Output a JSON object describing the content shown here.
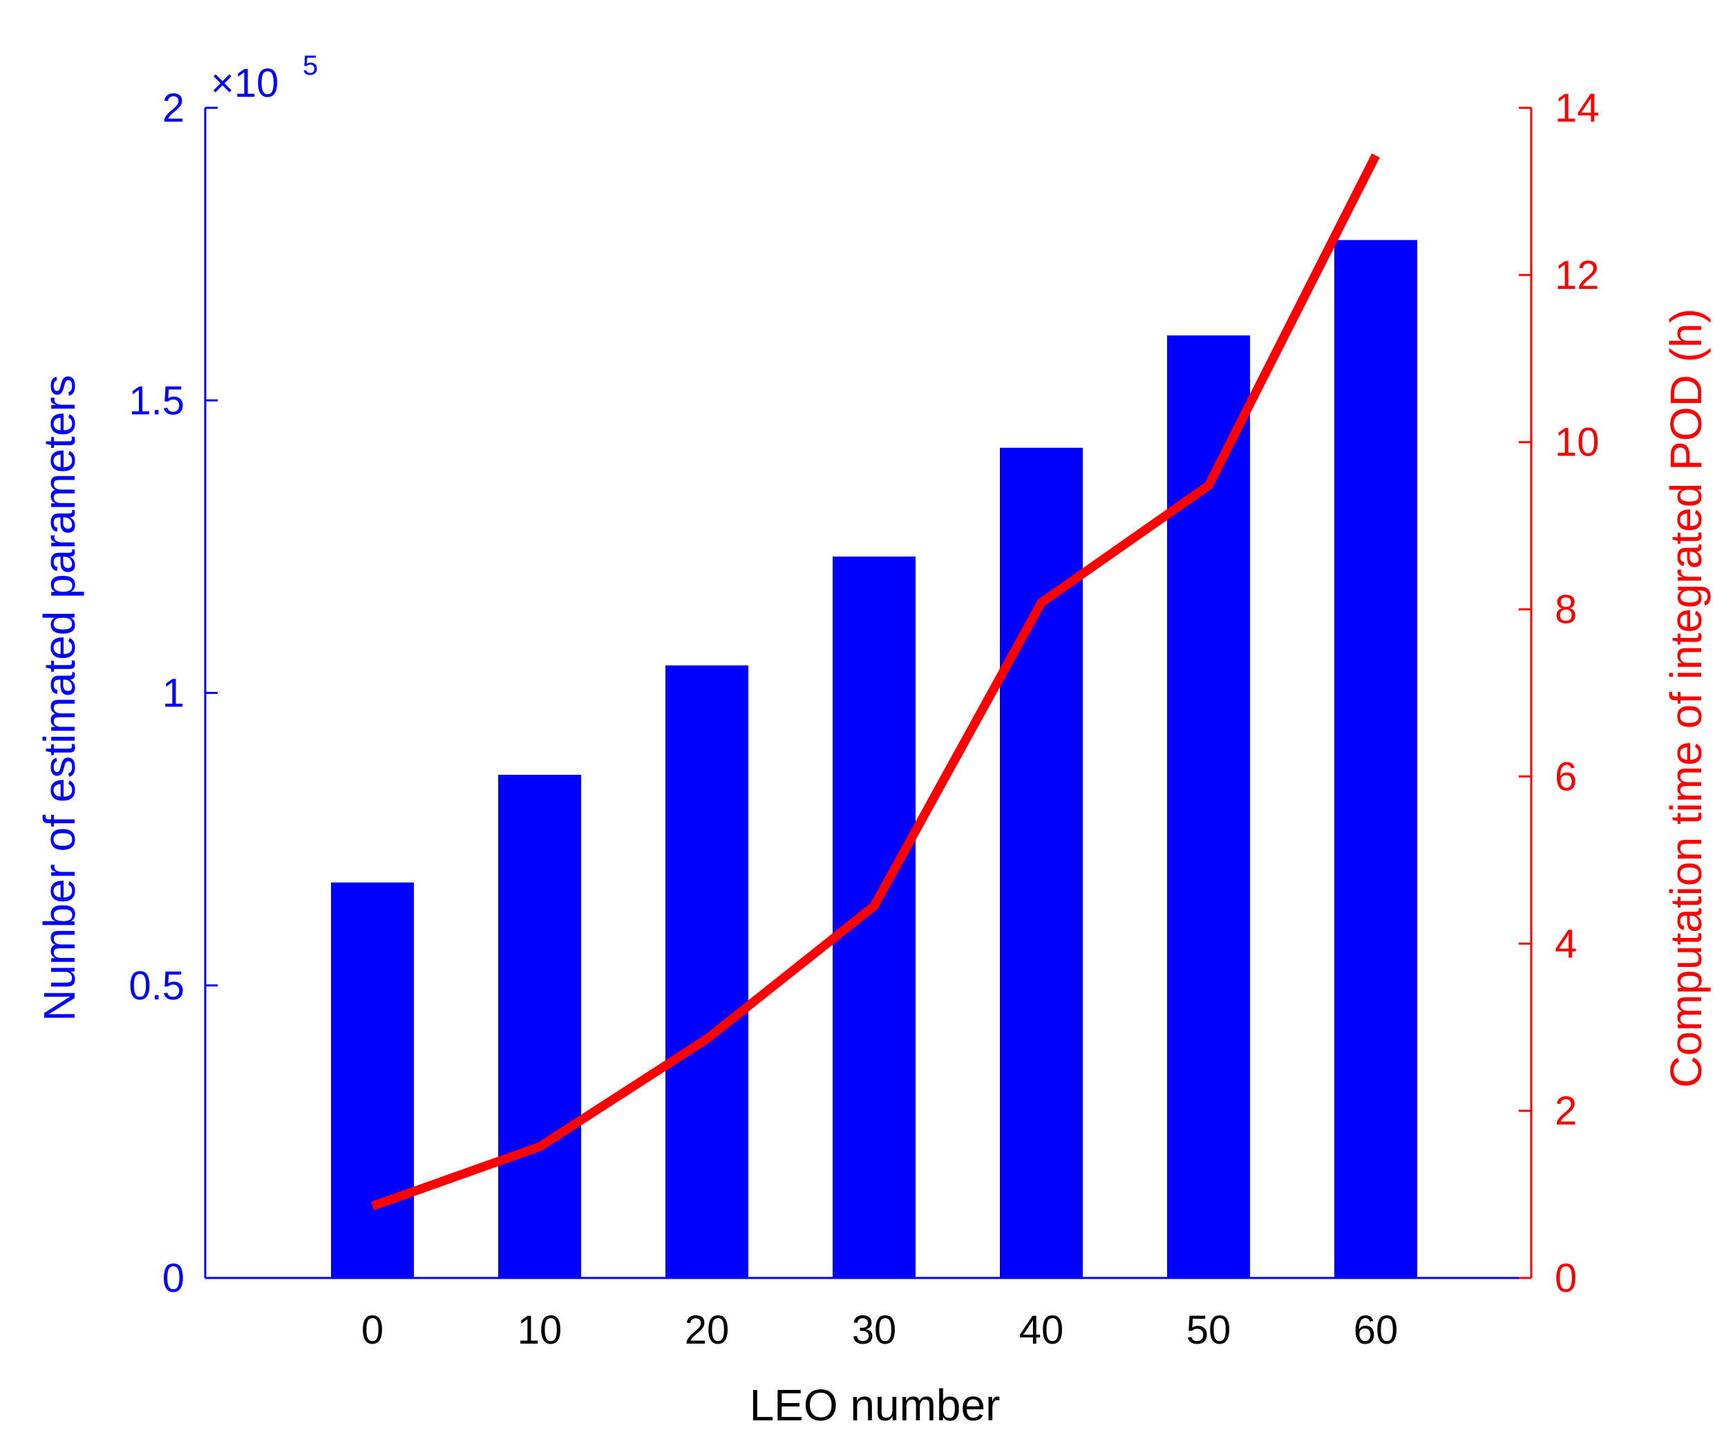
{
  "chart_data": {
    "type": "bar+line",
    "title": "",
    "xlabel": "LEO number",
    "categories": [
      "0",
      "10",
      "20",
      "30",
      "40",
      "50",
      "60"
    ],
    "series": [
      {
        "name": "Number of estimated parameters",
        "type": "bar",
        "axis": "left",
        "color": "#0000ff",
        "values": [
          67600,
          86000,
          104700,
          123300,
          141900,
          161100,
          177400
        ]
      },
      {
        "name": "Computation time of integrated POD (h)",
        "type": "line",
        "axis": "right",
        "color": "#ff0000",
        "values": [
          0.86,
          1.57,
          2.86,
          4.45,
          8.08,
          9.48,
          13.43
        ]
      }
    ],
    "left_axis": {
      "label": "Number of estimated parameters",
      "ylim": [
        0,
        200000
      ],
      "ticks": [
        "0",
        "0.5",
        "1",
        "1.5",
        "2"
      ],
      "multiplier": "×10",
      "exponent": "5",
      "color": "#0000ff"
    },
    "right_axis": {
      "label": "Computation time of integrated POD (h)",
      "ylim": [
        0,
        14
      ],
      "ticks": [
        "0",
        "2",
        "4",
        "6",
        "8",
        "10",
        "12",
        "14"
      ],
      "color": "#ff0000"
    },
    "grid": false,
    "legend": null
  }
}
